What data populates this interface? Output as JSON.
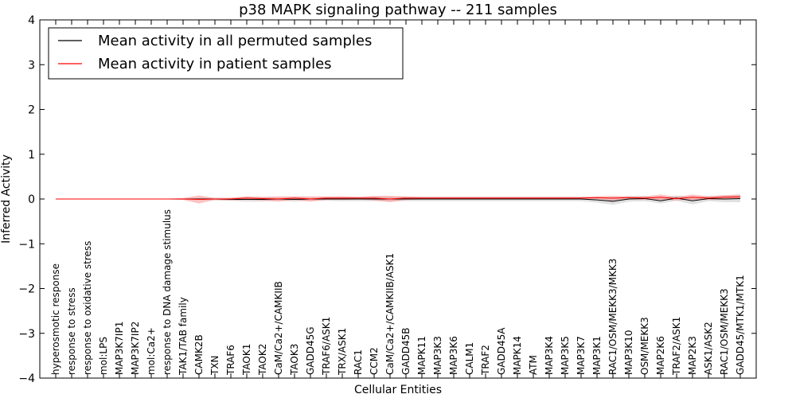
{
  "chart_data": {
    "type": "line",
    "title": "p38 MAPK signaling pathway -- 211 samples",
    "xlabel": "Cellular Entities",
    "ylabel": "Inferred Activity",
    "ylim": [
      -4,
      4
    ],
    "yticks": [
      -4,
      -3,
      -2,
      -1,
      0,
      1,
      2,
      3,
      4
    ],
    "ytick_labels": [
      "−4",
      "−3",
      "−2",
      "−1",
      "0",
      "1",
      "2",
      "3",
      "4"
    ],
    "grid": false,
    "legend_position": "top-left",
    "categories": [
      "hyperosmotic response",
      "response to stress",
      "response to oxidative stress",
      "mol:LPS",
      "MAP3K7IP1",
      "MAP3K7IP2",
      "mol:Ca2+",
      "response to DNA damage stimulus",
      "TAK1/TAB family",
      "CAMK2B",
      "TXN",
      "TRAF6",
      "TAOK1",
      "TAOK2",
      "CaM/Ca2+/CAMKIIB",
      "TAOK3",
      "GADD45G",
      "TRAF6/ASK1",
      "TRX/ASK1",
      "RAC1",
      "CCM2",
      "CaM/Ca2+/CAMKIIB/ASK1",
      "GADD45B",
      "MAPK11",
      "MAP3K3",
      "MAP3K6",
      "CALM1",
      "TRAF2",
      "GADD45A",
      "MAPK14",
      "ATM",
      "MAP3K4",
      "MAP3K5",
      "MAP3K7",
      "MAP3K1",
      "RAC1/OSM/MEKK3/MKK3",
      "MAP3K10",
      "OSM/MEKK3",
      "MAP2K6",
      "TRAF2/ASK1",
      "MAP2K3",
      "ASK1/ASK2",
      "RAC1/OSM/MEKK3",
      "GADD45/MTK1/MTK1"
    ],
    "series": [
      {
        "name": "Mean activity in all permuted samples",
        "color": "#000000",
        "band_color": "#bbbbbb",
        "values": [
          0,
          0,
          0,
          0,
          0,
          0,
          0,
          0,
          0,
          0,
          0,
          -0.01,
          -0.01,
          -0.01,
          0,
          -0.01,
          0,
          0,
          0,
          0,
          0,
          0,
          0,
          0,
          0,
          0,
          0,
          0,
          0,
          0,
          0,
          0,
          0,
          0,
          -0.02,
          -0.05,
          0,
          0.01,
          -0.04,
          0.02,
          -0.04,
          0.01,
          0,
          0.01
        ],
        "spread": [
          0.01,
          0.01,
          0.01,
          0.01,
          0.01,
          0.01,
          0.01,
          0.01,
          0.02,
          0.02,
          0.03,
          0.03,
          0.05,
          0.05,
          0.03,
          0.05,
          0.03,
          0.04,
          0.05,
          0.05,
          0.05,
          0.05,
          0.05,
          0.05,
          0.05,
          0.05,
          0.05,
          0.05,
          0.05,
          0.05,
          0.05,
          0.05,
          0.05,
          0.05,
          0.06,
          0.08,
          0.06,
          0.06,
          0.06,
          0.06,
          0.08,
          0.06,
          0.07,
          0.08
        ]
      },
      {
        "name": "Mean activity in patient samples",
        "color": "#ff0000",
        "band_color": "#ff6666",
        "values": [
          0,
          0,
          0,
          0,
          0,
          0,
          0,
          0,
          0,
          -0.01,
          0,
          0,
          0.02,
          0.01,
          0,
          0.02,
          0,
          0.02,
          0.02,
          0.02,
          0.02,
          0,
          0.02,
          0.02,
          0.02,
          0.02,
          0.02,
          0.02,
          0.02,
          0.02,
          0.02,
          0.02,
          0.02,
          0.02,
          0.03,
          0.02,
          0.03,
          0.02,
          0.04,
          0.01,
          0.04,
          0.02,
          0.04,
          0.05
        ],
        "spread": [
          0.005,
          0.005,
          0.005,
          0.005,
          0.005,
          0.005,
          0.005,
          0.005,
          0.02,
          0.09,
          0.02,
          0.03,
          0.04,
          0.04,
          0.06,
          0.04,
          0.06,
          0.04,
          0.04,
          0.03,
          0.05,
          0.07,
          0.04,
          0.03,
          0.03,
          0.03,
          0.03,
          0.03,
          0.03,
          0.03,
          0.03,
          0.03,
          0.03,
          0.03,
          0.03,
          0.05,
          0.03,
          0.04,
          0.06,
          0.04,
          0.06,
          0.04,
          0.05,
          0.05
        ]
      }
    ]
  }
}
